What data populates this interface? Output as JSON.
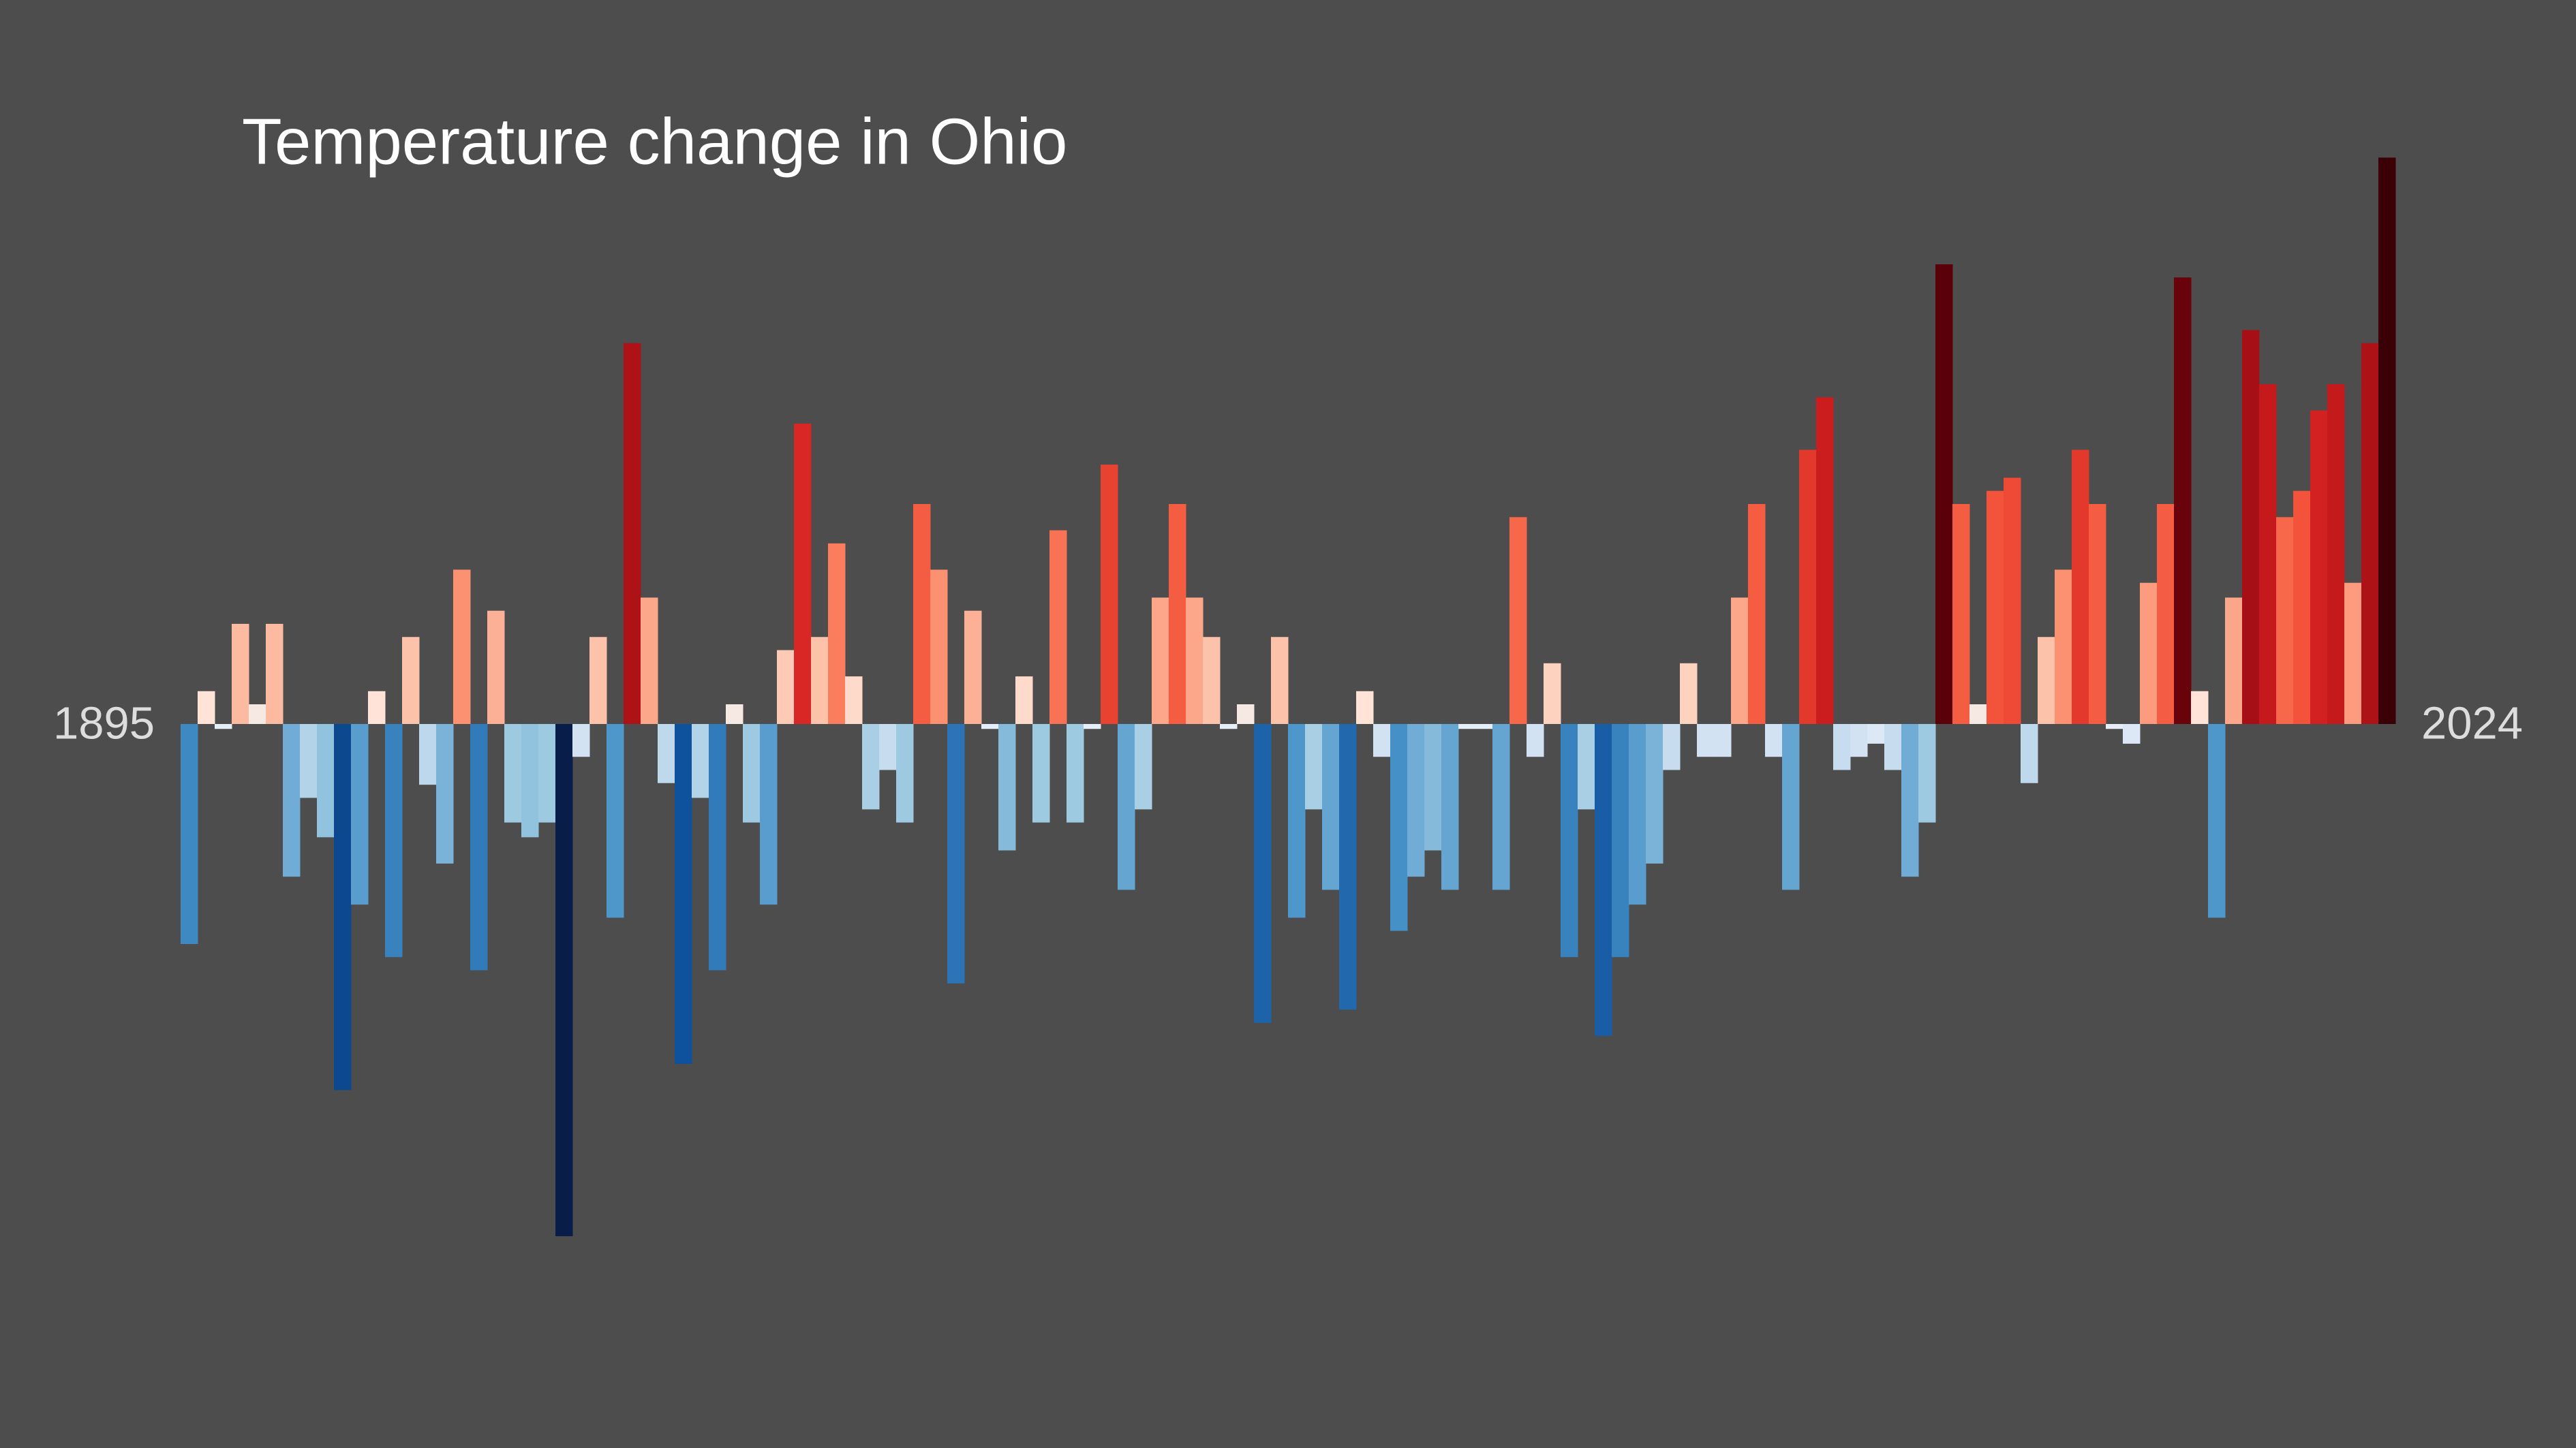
{
  "chart_data": {
    "type": "bar",
    "title": "Temperature change in Ohio",
    "categories": [
      "1895",
      null,
      null,
      null,
      null,
      null,
      null,
      null,
      null,
      null,
      null,
      null,
      null,
      null,
      null,
      null,
      null,
      null,
      null,
      null,
      null,
      null,
      null,
      null,
      null,
      null,
      null,
      null,
      null,
      null,
      null,
      null,
      null,
      null,
      null,
      null,
      null,
      null,
      null,
      null,
      null,
      null,
      null,
      null,
      null,
      null,
      null,
      null,
      null,
      null,
      null,
      null,
      null,
      null,
      null,
      null,
      null,
      null,
      null,
      null,
      null,
      null,
      null,
      null,
      null,
      null,
      null,
      null,
      null,
      null,
      null,
      null,
      null,
      null,
      null,
      null,
      null,
      null,
      null,
      null,
      null,
      null,
      null,
      null,
      null,
      null,
      null,
      null,
      null,
      null,
      null,
      null,
      null,
      null,
      null,
      null,
      null,
      null,
      null,
      null,
      null,
      null,
      null,
      null,
      null,
      null,
      null,
      null,
      null,
      null,
      null,
      null,
      null,
      null,
      null,
      null,
      null,
      null,
      null,
      null,
      null,
      null,
      null,
      null,
      null,
      null,
      null,
      null,
      null,
      "2024"
    ],
    "values": [
      -1.34,
      0.2,
      -0.03,
      0.61,
      0.12,
      0.61,
      -0.93,
      -0.45,
      -0.69,
      -2.23,
      -1.1,
      0.2,
      -1.42,
      0.53,
      -0.37,
      -0.85,
      0.94,
      -1.5,
      0.69,
      -0.6,
      -0.69,
      -0.6,
      -3.12,
      -0.2,
      0.53,
      -1.18,
      2.32,
      0.77,
      -0.36,
      -2.07,
      -0.45,
      -1.5,
      0.12,
      -0.6,
      -1.1,
      0.45,
      1.83,
      0.53,
      1.1,
      0.29,
      -0.52,
      -0.28,
      -0.6,
      1.34,
      0.94,
      -1.58,
      0.69,
      -0.03,
      -0.77,
      0.29,
      -0.6,
      1.18,
      -0.6,
      -0.03,
      1.58,
      -1.01,
      -0.52,
      0.77,
      1.34,
      0.77,
      0.53,
      -0.03,
      0.12,
      -1.82,
      0.53,
      -1.18,
      -0.52,
      -1.01,
      -1.74,
      0.2,
      -0.2,
      -1.26,
      -0.93,
      -0.77,
      -1.01,
      -0.03,
      -0.03,
      -1.01,
      1.26,
      -0.2,
      0.37,
      -1.42,
      -0.52,
      -1.9,
      -1.42,
      -1.1,
      -0.85,
      -0.28,
      0.37,
      -0.2,
      -0.2,
      0.77,
      1.34,
      -0.2,
      -1.01,
      1.67,
      1.99,
      -0.28,
      -0.2,
      -0.12,
      -0.28,
      -0.93,
      -0.6,
      2.8,
      1.34,
      0.12,
      1.42,
      1.5,
      -0.36,
      0.53,
      0.94,
      1.67,
      1.34,
      -0.03,
      -0.12,
      0.86,
      1.34,
      2.72,
      0.2,
      -1.18,
      0.77,
      2.4,
      2.07,
      1.26,
      1.42,
      1.91,
      2.07,
      0.86,
      2.32,
      3.45
    ],
    "ylim": [
      -4.41,
      4.41
    ],
    "color_stops": [
      [
        -3.0,
        "#081d49"
      ],
      [
        -2.1,
        "#0c4f9a"
      ],
      [
        -1.6,
        "#2a72b5"
      ],
      [
        -1.2,
        "#4a95c9"
      ],
      [
        -0.9,
        "#74aed6"
      ],
      [
        -0.6,
        "#9ecae1"
      ],
      [
        -0.3,
        "#c6dbef"
      ],
      [
        0,
        "#eaf1fa"
      ],
      [
        0.2,
        "#fee3d6"
      ],
      [
        0.6,
        "#fcbba1"
      ],
      [
        1.0,
        "#fc8a6a"
      ],
      [
        1.4,
        "#f4553b"
      ],
      [
        1.9,
        "#d42020"
      ],
      [
        2.4,
        "#a50f15"
      ],
      [
        2.8,
        "#5a0008"
      ],
      [
        3.45,
        "#3a0006"
      ]
    ],
    "background": "#4d4d4d"
  }
}
